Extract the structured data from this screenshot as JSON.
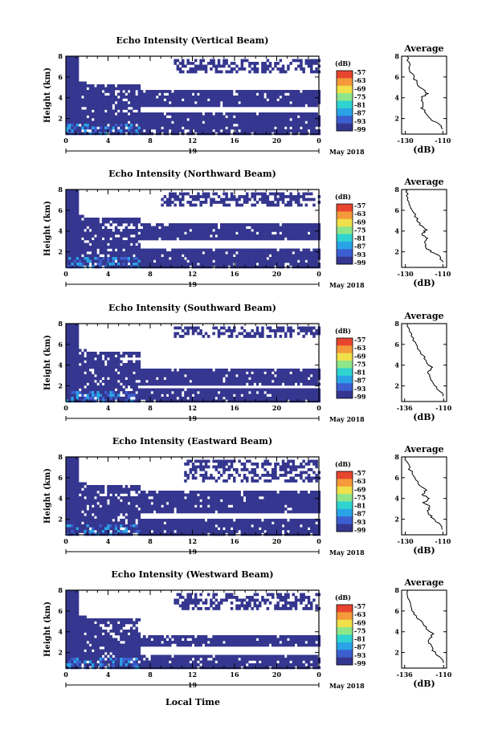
{
  "figure": {
    "xlabel": "Local Time",
    "date_label": "May 2018",
    "day_label": "19",
    "colorbar_unit": "(dB)",
    "avg_title": "Average",
    "avg_xlabel": "(dB)"
  },
  "chart_data": [
    {
      "type": "heatmap",
      "title": "Echo Intensity (Vertical Beam)",
      "ylabel": "Height (km)",
      "x_ticks": [
        "0",
        "4",
        "8",
        "12",
        "16",
        "20",
        "0"
      ],
      "y_ticks": [
        "2",
        "4",
        "6",
        "8"
      ],
      "xlim": [
        0,
        24
      ],
      "ylim": [
        0.5,
        8
      ],
      "colorbar": {
        "label": "(dB)",
        "ticks": [
          "-57",
          "-63",
          "-69",
          "-75",
          "-81",
          "-87",
          "-93",
          "-99"
        ],
        "range": [
          -99,
          -57
        ]
      },
      "average": {
        "title": "Average",
        "xlabel": "(dB)",
        "x_ticks": [
          "-130",
          "-110"
        ],
        "y_ticks": [
          "2",
          "4",
          "6",
          "8"
        ],
        "xlim": [
          -132,
          -108
        ],
        "profile": [
          [
            -110,
            1
          ],
          [
            -112,
            1.5
          ],
          [
            -117,
            2
          ],
          [
            -119,
            2.5
          ],
          [
            -121,
            3
          ],
          [
            -120,
            3.5
          ],
          [
            -122,
            4
          ],
          [
            -118,
            4.4
          ],
          [
            -121,
            4.8
          ],
          [
            -123,
            5.2
          ],
          [
            -125,
            5.8
          ],
          [
            -127,
            6.5
          ],
          [
            -128,
            7.2
          ],
          [
            -129,
            8
          ]
        ]
      },
      "echo": {
        "layers": [
          [
            1.0,
            2.6
          ],
          [
            3.3,
            5.0
          ]
        ],
        "top_patchy": [
          6.6,
          8.0
        ],
        "top_start": 10,
        "step": 5.7,
        "top_jump": 0
      }
    },
    {
      "type": "heatmap",
      "title": "Echo Intensity (Northward Beam)",
      "ylabel": "Height (km)",
      "x_ticks": [
        "0",
        "4",
        "8",
        "12",
        "16",
        "20",
        "0"
      ],
      "y_ticks": [
        "2",
        "4",
        "6",
        "8"
      ],
      "xlim": [
        0,
        24
      ],
      "ylim": [
        0.5,
        8
      ],
      "colorbar": {
        "label": "(dB)",
        "ticks": [
          "-57",
          "-63",
          "-69",
          "-75",
          "-81",
          "-87",
          "-93",
          "-99"
        ],
        "range": [
          -99,
          -57
        ]
      },
      "average": {
        "title": "Average",
        "xlabel": "(dB)",
        "x_ticks": [
          "-130",
          "-110"
        ],
        "y_ticks": [
          "2",
          "4",
          "6",
          "8"
        ],
        "xlim": [
          -132,
          -108
        ],
        "profile": [
          [
            -110,
            1
          ],
          [
            -112,
            1.6
          ],
          [
            -116,
            2
          ],
          [
            -119,
            2.4
          ],
          [
            -120,
            2.9
          ],
          [
            -118,
            3.3
          ],
          [
            -121,
            3.7
          ],
          [
            -119,
            4.1
          ],
          [
            -122,
            4.6
          ],
          [
            -124,
            5.2
          ],
          [
            -126,
            6
          ],
          [
            -128,
            6.8
          ],
          [
            -129,
            7.6
          ],
          [
            -130,
            8
          ]
        ]
      },
      "echo": {
        "layers": [
          [
            0.9,
            2.5
          ],
          [
            3.2,
            5.0
          ]
        ],
        "top_patchy": [
          6.4,
          8.0
        ],
        "top_start": 9,
        "step": 5.8,
        "top_jump": 0
      }
    },
    {
      "type": "heatmap",
      "title": "Echo Intensity (Southward Beam)",
      "ylabel": "Height (km)",
      "x_ticks": [
        "0",
        "4",
        "8",
        "12",
        "16",
        "20",
        "0"
      ],
      "y_ticks": [
        "2",
        "4",
        "6",
        "8"
      ],
      "xlim": [
        0,
        24
      ],
      "ylim": [
        0.5,
        8
      ],
      "colorbar": {
        "label": "(dB)",
        "ticks": [
          "-57",
          "-63",
          "-69",
          "-75",
          "-81",
          "-87",
          "-93",
          "-99"
        ],
        "range": [
          -99,
          -57
        ]
      },
      "average": {
        "title": "Average",
        "xlabel": "(dB)",
        "x_ticks": [
          "-136",
          "-110"
        ],
        "y_ticks": [
          "2",
          "4",
          "6",
          "8"
        ],
        "xlim": [
          -138,
          -108
        ],
        "profile": [
          [
            -110,
            1
          ],
          [
            -113,
            1.6
          ],
          [
            -117,
            2.2
          ],
          [
            -119,
            2.8
          ],
          [
            -120,
            3.3
          ],
          [
            -118,
            3.8
          ],
          [
            -121,
            4.2
          ],
          [
            -123,
            4.8
          ],
          [
            -126,
            5.4
          ],
          [
            -129,
            6.2
          ],
          [
            -132,
            7
          ],
          [
            -134,
            8
          ]
        ]
      },
      "echo": {
        "layers": [
          [
            0.8,
            1.8
          ],
          [
            2.2,
            3.9
          ]
        ],
        "top_patchy": [
          6.8,
          8.0
        ],
        "top_start": 10,
        "step": 5.6,
        "top_jump": 14
      }
    },
    {
      "type": "heatmap",
      "title": "Echo Intensity (Eastward Beam)",
      "ylabel": "Height (km)",
      "x_ticks": [
        "0",
        "4",
        "8",
        "12",
        "16",
        "20",
        "0"
      ],
      "y_ticks": [
        "2",
        "4",
        "6",
        "8"
      ],
      "xlim": [
        0,
        24
      ],
      "ylim": [
        0.5,
        8
      ],
      "colorbar": {
        "label": "(dB)",
        "ticks": [
          "-57",
          "-63",
          "-69",
          "-75",
          "-81",
          "-87",
          "-93",
          "-99"
        ],
        "range": [
          -99,
          -57
        ]
      },
      "average": {
        "title": "Average",
        "xlabel": "(dB)",
        "x_ticks": [
          "-130",
          "-110"
        ],
        "y_ticks": [
          "2",
          "4",
          "6",
          "8"
        ],
        "xlim": [
          -132,
          -108
        ],
        "profile": [
          [
            -110,
            1
          ],
          [
            -112,
            1.6
          ],
          [
            -116,
            2.2
          ],
          [
            -118,
            2.7
          ],
          [
            -117,
            3.2
          ],
          [
            -120,
            3.6
          ],
          [
            -117,
            4
          ],
          [
            -121,
            4.4
          ],
          [
            -119,
            4.8
          ],
          [
            -123,
            5.4
          ],
          [
            -126,
            6.2
          ],
          [
            -128,
            7
          ],
          [
            -130,
            8
          ]
        ]
      },
      "echo": {
        "layers": [
          [
            1.0,
            2.3
          ],
          [
            2.8,
            4.9
          ]
        ],
        "top_patchy": [
          5.8,
          8.0
        ],
        "top_start": 11,
        "step": 5.9,
        "top_jump": 0
      }
    },
    {
      "type": "heatmap",
      "title": "Echo Intensity (Westward Beam)",
      "ylabel": "Height (km)",
      "x_ticks": [
        "0",
        "4",
        "8",
        "12",
        "16",
        "20",
        "0"
      ],
      "y_ticks": [
        "2",
        "4",
        "6",
        "8"
      ],
      "xlim": [
        0,
        24
      ],
      "ylim": [
        0.5,
        8
      ],
      "colorbar": {
        "label": "(dB)",
        "ticks": [
          "-57",
          "-63",
          "-69",
          "-75",
          "-81",
          "-87",
          "-93",
          "-99"
        ],
        "range": [
          -99,
          -57
        ]
      },
      "average": {
        "title": "Average",
        "xlabel": "(dB)",
        "x_ticks": [
          "-136",
          "-110"
        ],
        "y_ticks": [
          "2",
          "4",
          "6",
          "8"
        ],
        "xlim": [
          -138,
          -108
        ],
        "profile": [
          [
            -110,
            1
          ],
          [
            -113,
            1.6
          ],
          [
            -117,
            2.2
          ],
          [
            -119,
            2.8
          ],
          [
            -120,
            3.2
          ],
          [
            -117,
            3.8
          ],
          [
            -121,
            4.3
          ],
          [
            -124,
            4.9
          ],
          [
            -128,
            5.4
          ],
          [
            -131,
            6
          ],
          [
            -133,
            7
          ],
          [
            -134,
            8
          ]
        ]
      },
      "echo": {
        "layers": [
          [
            0.9,
            2.0
          ],
          [
            2.6,
            3.8
          ]
        ],
        "top_patchy": [
          6.2,
          8.0
        ],
        "top_start": 10,
        "step": 5.5,
        "top_jump": 14
      }
    }
  ]
}
